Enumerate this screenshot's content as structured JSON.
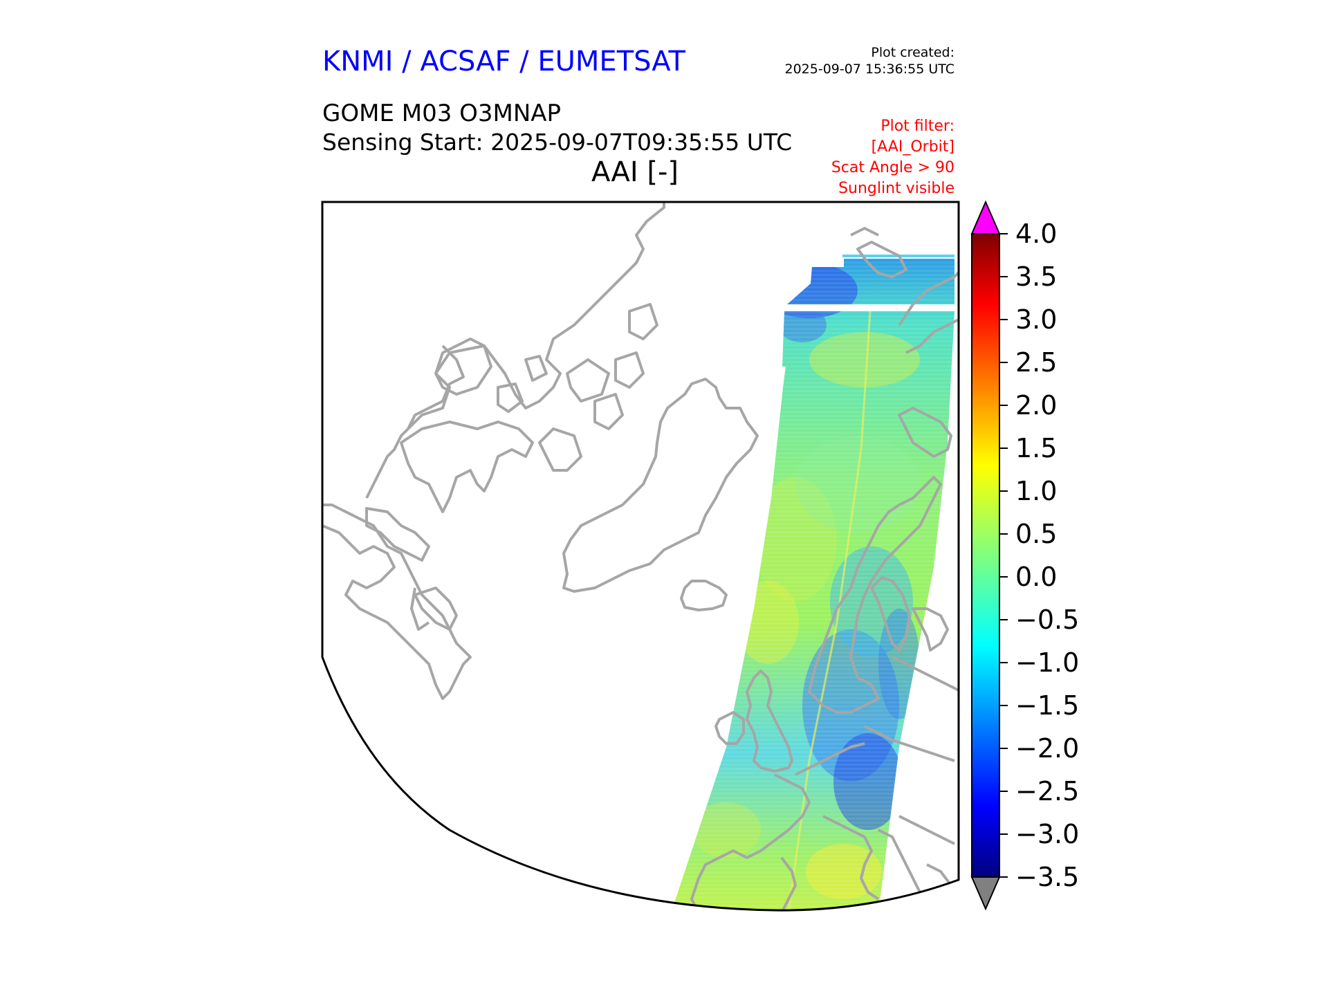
{
  "header": {
    "organization": "KNMI / ACSAF / EUMETSAT",
    "created_label": "Plot created:",
    "created_time": "2025-09-07 15:36:55 UTC",
    "product": "GOME M03 O3MNAP",
    "sensing_start": "Sensing Start: 2025-09-07T09:35:55 UTC",
    "variable": "AAI [-]"
  },
  "filter": {
    "label": "Plot filter:",
    "lines": [
      "[AAI_Orbit]",
      "Scat Angle > 90",
      "Sunglint visible"
    ]
  },
  "colorbar": {
    "ticks": [
      "4.0",
      "3.5",
      "3.0",
      "2.5",
      "2.0",
      "1.5",
      "1.0",
      "0.5",
      "0.0",
      "−0.5",
      "−1.0",
      "−1.5",
      "−2.0",
      "−2.5",
      "−3.0",
      "−3.5"
    ],
    "min": -3.5,
    "max": 4.0,
    "over_color": "#ff00ff",
    "under_color": "#808080",
    "colormap": "jet"
  },
  "map": {
    "coastline_color": "#a6a6a6",
    "swath_typical_range": [
      -3.0,
      2.0
    ]
  }
}
